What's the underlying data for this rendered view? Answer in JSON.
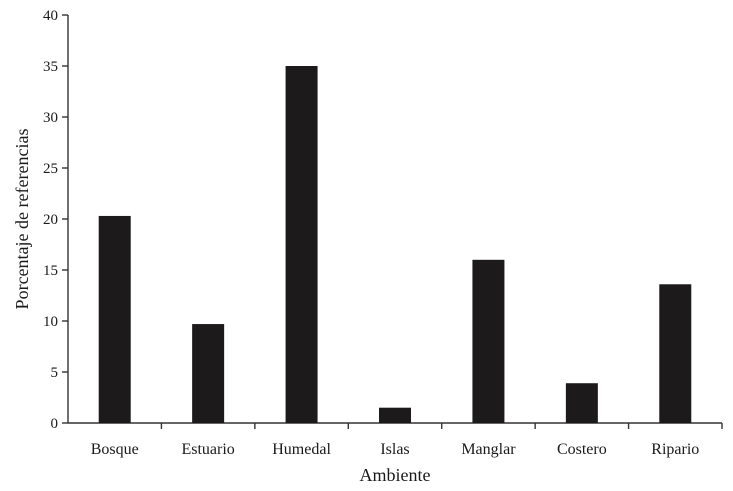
{
  "chart_data": {
    "type": "bar",
    "categories": [
      "Bosque",
      "Estuario",
      "Humedal",
      "Islas",
      "Manglar",
      "Costero",
      "Ripario"
    ],
    "values": [
      20.3,
      9.7,
      35.0,
      1.5,
      16.0,
      3.9,
      13.6
    ],
    "xlabel": "Ambiente",
    "ylabel": "Porcentaje de referencias",
    "ylim": [
      0,
      40
    ],
    "yticks": [
      0,
      5,
      10,
      15,
      20,
      25,
      30,
      35,
      40
    ],
    "grid": false,
    "bar_color": "#1c1a1b",
    "axis_color": "#333333"
  }
}
